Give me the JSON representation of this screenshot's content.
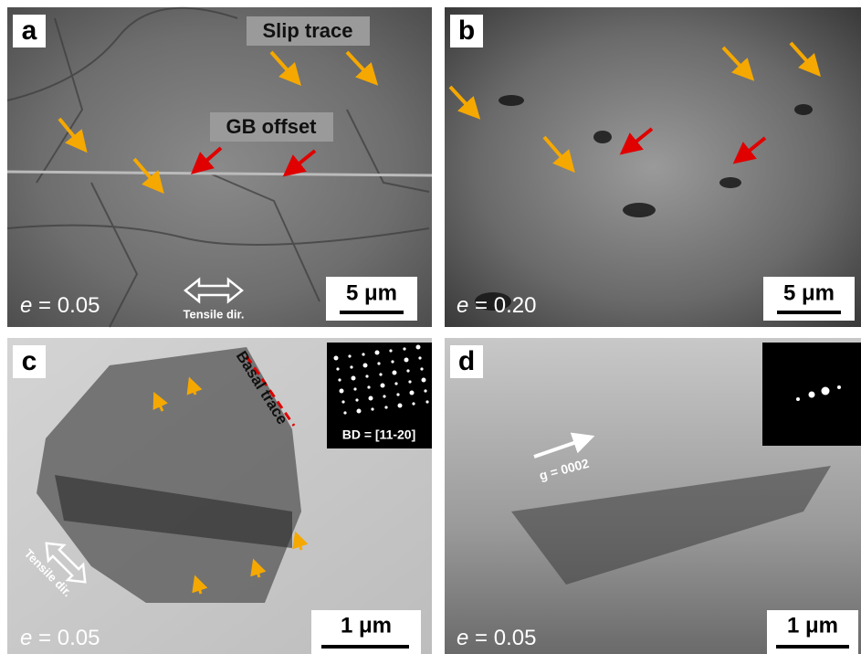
{
  "panels": [
    {
      "label": "a",
      "annotations": [
        "Slip trace",
        "GB offset"
      ],
      "strain": {
        "symbol": "e",
        "value": "= 0.05"
      },
      "direction": "Tensile dir.",
      "scale_bar": "5 μm"
    },
    {
      "label": "b",
      "strain": {
        "symbol": "e",
        "value": "= 0.20"
      },
      "scale_bar": "5 μm"
    },
    {
      "label": "c",
      "annotations": [
        "Basal trace"
      ],
      "inset": "BD = [11-20]",
      "strain": {
        "symbol": "e",
        "value": "= 0.05"
      },
      "direction": "Tensile dir.",
      "scale_bar": "1 μm"
    },
    {
      "label": "d",
      "annotations": [
        "g = 0002"
      ],
      "strain": {
        "symbol": "e",
        "value": "= 0.05"
      },
      "scale_bar": "1 μm"
    }
  ]
}
